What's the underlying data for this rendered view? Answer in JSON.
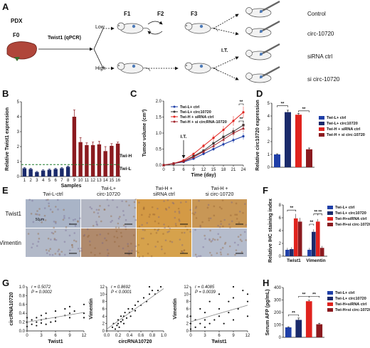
{
  "panels": {
    "A": "A",
    "B": "B",
    "C": "C",
    "D": "D",
    "E": "E",
    "F": "F",
    "G": "G",
    "H": "H"
  },
  "colors": {
    "blue": "#1f3fa8",
    "darkblue": "#1a2a6b",
    "red": "#e0231e",
    "darkred": "#8b1a1f",
    "green": "#1e7a2a",
    "gray": "#888888"
  },
  "panel_a": {
    "pdx": "PDX",
    "f0": "F0",
    "twist_qpcr": "Twist1 (qPCR)",
    "low": "Low",
    "high": "High",
    "f1": "F1",
    "f2": "F2",
    "f3": "F3",
    "it": "I.T.",
    "groups": [
      "Control",
      "circ-10720",
      "siRNA ctrl",
      "si circ-10720"
    ]
  },
  "chart_data": [
    {
      "panel": "B",
      "type": "bar",
      "ylabel": "Relative Twist1 expression",
      "xlabel": "Samples",
      "categories": [
        "1",
        "2",
        "3",
        "4",
        "5",
        "6",
        "7",
        "8",
        "9",
        "10",
        "11",
        "12",
        "13",
        "14",
        "15",
        "16"
      ],
      "values": [
        0.55,
        0.5,
        0.3,
        0.4,
        0.45,
        0.5,
        0.55,
        0.65,
        4.0,
        2.3,
        2.1,
        2.1,
        2.15,
        1.7,
        2.05,
        2.2
      ],
      "errors": [
        0.05,
        0.05,
        0.04,
        0.05,
        0.05,
        0.05,
        0.05,
        0.05,
        0.45,
        0.3,
        0.15,
        0.2,
        0.2,
        0.3,
        0.15,
        0.1
      ],
      "colors_by_group": {
        "low": "#1a2a6b",
        "high": "#8b1a1f"
      },
      "ylim": [
        0,
        5
      ],
      "yticks": [
        "0",
        "1",
        "2",
        "3",
        "4",
        "5"
      ],
      "threshold": 0.8,
      "threshold_labels": [
        "Twi-H",
        "Twi-L"
      ]
    },
    {
      "panel": "C",
      "type": "line",
      "ylabel": "Tumor volume (cm³)",
      "xlabel": "Time (day)",
      "x": [
        0,
        3,
        6,
        9,
        12,
        15,
        18,
        21,
        24
      ],
      "xticks": [
        "0",
        "3",
        "6",
        "9",
        "12",
        "15",
        "18",
        "21",
        "24"
      ],
      "ylim": [
        0,
        2.0
      ],
      "yticks": [
        "0.0",
        "0.5",
        "1.0",
        "1.5",
        "2.0"
      ],
      "annotation": "I.T.",
      "series": [
        {
          "name": "Twi-L+ ctrl",
          "color": "#1f3fa8",
          "values": [
            0,
            0.05,
            0.1,
            0.2,
            0.35,
            0.5,
            0.65,
            0.78,
            0.9
          ]
        },
        {
          "name": "Twi-L+ circ10720",
          "color": "#333333",
          "values": [
            0,
            0.05,
            0.12,
            0.28,
            0.45,
            0.68,
            0.88,
            1.05,
            1.25
          ]
        },
        {
          "name": "Twi-H + siRNA ctrl",
          "color": "#e0231e",
          "values": [
            0,
            0.05,
            0.15,
            0.35,
            0.6,
            0.85,
            1.1,
            1.38,
            1.65
          ]
        },
        {
          "name": "Twi-H + si circRNA-10720",
          "color": "#a0222a",
          "values": [
            0,
            0.05,
            0.12,
            0.25,
            0.42,
            0.6,
            0.8,
            1.0,
            1.15
          ]
        }
      ],
      "significance": [
        "**",
        "**"
      ]
    },
    {
      "panel": "D",
      "type": "bar",
      "ylabel": "Relative circ10720 expression",
      "ylim": [
        0,
        5
      ],
      "yticks": [
        "0",
        "1",
        "2",
        "3",
        "4",
        "5"
      ],
      "categories": [
        "Twi-L+ ctrl",
        "Twi-L+ circ10720",
        "Twi-H + siRNA ctrl",
        "Twi-H + si circ-10720"
      ],
      "values": [
        1.0,
        4.3,
        4.1,
        1.4
      ],
      "errors": [
        0.05,
        0.15,
        0.1,
        0.1
      ],
      "colors": [
        "#1f3fa8",
        "#1a2a6b",
        "#e0231e",
        "#8b1a1f"
      ],
      "significance": [
        "**",
        "**"
      ]
    },
    {
      "panel": "F",
      "type": "bar",
      "ylabel": "Relative IHC staining index",
      "ylim": [
        0,
        8
      ],
      "yticks": [
        "0",
        "2",
        "4",
        "6",
        "8"
      ],
      "categories": [
        "Twist1",
        "Vimentin"
      ],
      "series": [
        {
          "name": "Twi-L+ ctrl",
          "color": "#1f3fa8",
          "values": [
            1.0,
            1.0
          ],
          "errors": [
            0.3,
            0.3
          ]
        },
        {
          "name": "Twi-L+ circ10720",
          "color": "#1a2a6b",
          "values": [
            1.1,
            3.8
          ],
          "errors": [
            0.3,
            0.4
          ]
        },
        {
          "name": "Twi-H+siRNA ctrl",
          "color": "#e0231e",
          "values": [
            5.9,
            5.4
          ],
          "errors": [
            0.7,
            0.4
          ]
        },
        {
          "name": "Twi-H+si circ-10720",
          "color": "#8b1a1f",
          "values": [
            5.4,
            1.3
          ],
          "errors": [
            0.6,
            0.3
          ]
        }
      ],
      "significance": [
        "**",
        "**",
        "**",
        "**"
      ]
    },
    {
      "panel": "G1",
      "type": "scatter",
      "xlabel": "Twist1",
      "ylabel": "circRNA10720",
      "xlim": [
        0,
        12
      ],
      "ylim": [
        0,
        1.0
      ],
      "xticks": [
        "0",
        "3",
        "6",
        "9",
        "12"
      ],
      "yticks": [
        "0.0",
        "0.2",
        "0.4",
        "0.6",
        "0.8",
        "1.0"
      ],
      "stats": [
        "r = 0.5072",
        "P = 0.0002"
      ],
      "fit": [
        0.2,
        0.42
      ],
      "points": [
        [
          0,
          0.1
        ],
        [
          0,
          0.2
        ],
        [
          0,
          0.3
        ],
        [
          1,
          0.25
        ],
        [
          1,
          0.15
        ],
        [
          2,
          0.2
        ],
        [
          2,
          0.3
        ],
        [
          2,
          0.12
        ],
        [
          3,
          0.18
        ],
        [
          3,
          0.35
        ],
        [
          3,
          0.25
        ],
        [
          4,
          0.28
        ],
        [
          4,
          0.4
        ],
        [
          4,
          0.15
        ],
        [
          5,
          0.2
        ],
        [
          6,
          0.3
        ],
        [
          6,
          0.45
        ],
        [
          6,
          0.22
        ],
        [
          8,
          0.35
        ],
        [
          8,
          0.5
        ],
        [
          9,
          0.4
        ],
        [
          9,
          0.3
        ],
        [
          9,
          0.55
        ],
        [
          10,
          0.45
        ],
        [
          12,
          0.6
        ],
        [
          12,
          0.4
        ],
        [
          12,
          0.3
        ]
      ]
    },
    {
      "panel": "G2",
      "type": "scatter",
      "xlabel": "circRNA10720",
      "ylabel": "Vimentin",
      "xlim": [
        0,
        1.0
      ],
      "ylim": [
        0,
        12
      ],
      "xticks": [
        "0.0",
        "0.2",
        "0.4",
        "0.6",
        "0.8",
        "1.0"
      ],
      "yticks": [
        "0",
        "2",
        "4",
        "6",
        "8",
        "10",
        "12"
      ],
      "stats": [
        "r = 0.8692",
        "P < 0.0001"
      ],
      "fit": [
        0.5,
        11.5
      ],
      "points": [
        [
          0.1,
          1
        ],
        [
          0.12,
          2
        ],
        [
          0.15,
          0.5
        ],
        [
          0.18,
          1.5
        ],
        [
          0.2,
          2
        ],
        [
          0.2,
          3
        ],
        [
          0.22,
          1
        ],
        [
          0.25,
          2.5
        ],
        [
          0.25,
          4
        ],
        [
          0.28,
          3
        ],
        [
          0.3,
          2
        ],
        [
          0.3,
          4
        ],
        [
          0.32,
          5
        ],
        [
          0.35,
          3.5
        ],
        [
          0.38,
          6
        ],
        [
          0.4,
          5
        ],
        [
          0.42,
          4
        ],
        [
          0.45,
          6
        ],
        [
          0.5,
          7
        ],
        [
          0.5,
          5.5
        ],
        [
          0.55,
          8
        ],
        [
          0.6,
          7
        ],
        [
          0.65,
          9
        ],
        [
          0.7,
          8
        ],
        [
          0.75,
          10
        ],
        [
          0.8,
          11
        ],
        [
          0.85,
          10
        ],
        [
          0.9,
          11
        ],
        [
          0.95,
          12
        ],
        [
          0.75,
          12
        ]
      ]
    },
    {
      "panel": "G3",
      "type": "scatter",
      "xlabel": "Twist1",
      "ylabel": "Vimentin",
      "xlim": [
        0,
        12
      ],
      "ylim": [
        0,
        12
      ],
      "xticks": [
        "0",
        "3",
        "6",
        "9",
        "12"
      ],
      "yticks": [
        "0",
        "2",
        "4",
        "6",
        "8",
        "10",
        "12"
      ],
      "stats": [
        "r = 0.4085",
        "P = 0.0039"
      ],
      "fit": [
        2.5,
        7
      ],
      "points": [
        [
          0,
          0.5
        ],
        [
          0,
          2
        ],
        [
          0,
          4
        ],
        [
          1,
          1
        ],
        [
          1,
          3
        ],
        [
          2,
          2
        ],
        [
          2,
          6
        ],
        [
          3,
          1
        ],
        [
          3,
          3
        ],
        [
          3,
          5
        ],
        [
          4,
          2
        ],
        [
          4,
          8
        ],
        [
          5,
          3
        ],
        [
          6,
          4
        ],
        [
          6,
          6
        ],
        [
          6,
          10
        ],
        [
          7,
          2
        ],
        [
          8,
          5
        ],
        [
          8,
          8
        ],
        [
          9,
          3
        ],
        [
          9,
          9
        ],
        [
          9,
          12
        ],
        [
          10,
          6
        ],
        [
          11,
          11
        ],
        [
          12,
          4
        ],
        [
          12,
          8
        ],
        [
          12,
          10
        ]
      ]
    },
    {
      "panel": "H",
      "type": "bar",
      "ylabel": "Serum AFP (pg/mL)",
      "ylim": [
        0,
        400
      ],
      "yticks": [
        "0",
        "100",
        "200",
        "300",
        "400"
      ],
      "categories": [
        "Twi-L+ ctrl",
        "Twi-L+ circ10720",
        "Twi-H+siRNA ctrl",
        "Twi-H+si circ-10720"
      ],
      "values": [
        80,
        140,
        290,
        105
      ],
      "errors": [
        5,
        15,
        8,
        8
      ],
      "colors": [
        "#1f3fa8",
        "#1a2a6b",
        "#e0231e",
        "#8b1a1f"
      ],
      "significance": [
        "**",
        "**",
        "**"
      ]
    }
  ],
  "panel_e": {
    "columns": [
      "Twi-L-ctrl",
      "Twi-L+\ncirc-10720",
      "Twi-H +\nsiRNA ctrl",
      "Twi-H +\nsi circ-10720"
    ],
    "rows": [
      "Twist1",
      "Vimentin"
    ],
    "scale": "50μm",
    "tile_colors": [
      [
        "#a9b4c7",
        "#b3b7c4",
        "#d49a45",
        "#c89756"
      ],
      [
        "#b2b9c8",
        "#b08a6c",
        "#d6a24c",
        "#b5bccc"
      ]
    ]
  }
}
